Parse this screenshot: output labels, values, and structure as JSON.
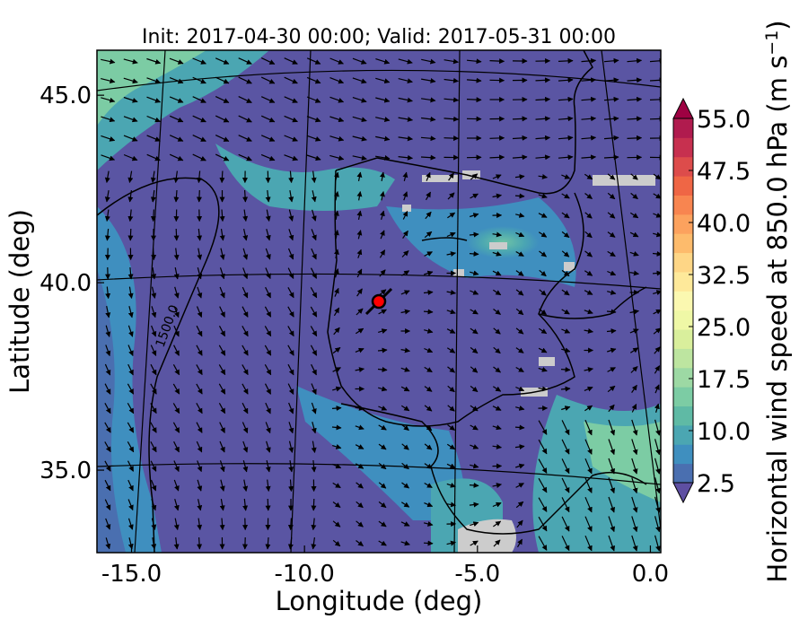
{
  "chart_data": {
    "type": "heatmap",
    "title": "Init: 2017-04-30 00:00; Valid: 2017-05-31 00:00",
    "xlabel": "Longitude (deg)",
    "ylabel": "Latitude (deg)",
    "xlim": [
      -16.0,
      0.3
    ],
    "ylim": [
      32.8,
      46.2
    ],
    "x_ticks": [
      -15.0,
      -10.0,
      -5.0,
      0.0
    ],
    "x_tick_labels": [
      "-15.0",
      "-10.0",
      "-5.0",
      "0.0"
    ],
    "y_ticks": [
      35.0,
      40.0,
      45.0
    ],
    "y_tick_labels": [
      "35.0",
      "40.0",
      "45.0"
    ],
    "grid": true,
    "colorbar": {
      "label": "Horizontal wind speed at 850.0 hPa",
      "units": "(m s",
      "units_exp": "−1",
      "units_close": ")",
      "min": 2.5,
      "max": 55.0,
      "step": 2.5,
      "extend": "both",
      "tick_values": [
        2.5,
        10.0,
        17.5,
        25.0,
        32.5,
        40.0,
        47.5,
        55.0
      ],
      "tick_labels": [
        "2.5",
        "10.0",
        "17.5",
        "25.0",
        "32.5",
        "40.0",
        "47.5",
        "55.0"
      ],
      "colors": [
        "#5e4fa2",
        "#4a6fb0",
        "#3f8fbf",
        "#4ba6b2",
        "#5fbaa5",
        "#7ccca4",
        "#9dd9a4",
        "#bde5a0",
        "#d9ef9c",
        "#eff8a6",
        "#fbf8b0",
        "#fee99a",
        "#fed686",
        "#fdbb6c",
        "#fca25e",
        "#f88550",
        "#ef6645",
        "#dd4c4b",
        "#c7304f",
        "#b01b4e",
        "#9e0142"
      ]
    },
    "contour_label": "1500.0",
    "station_marker": {
      "lon": -7.7,
      "lat": 39.3
    }
  }
}
